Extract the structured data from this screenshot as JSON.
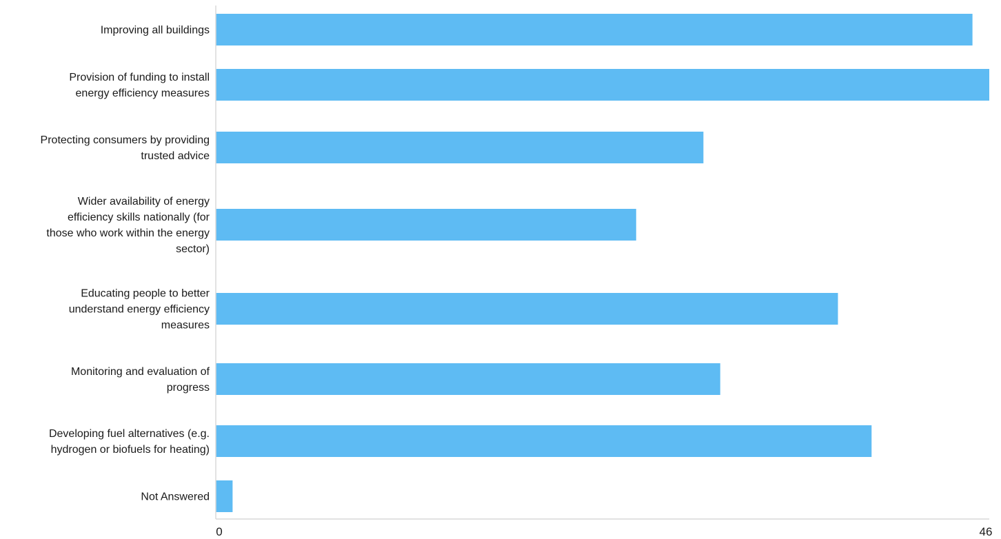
{
  "chart_data": {
    "type": "bar",
    "orientation": "horizontal",
    "title": "",
    "xlabel": "",
    "ylabel": "",
    "categories": [
      [
        "Improving all buildings"
      ],
      [
        "Provision of funding to install",
        "energy efficiency measures"
      ],
      [
        "Protecting consumers by providing",
        "trusted advice"
      ],
      [
        "Wider availability of energy",
        "efficiency skills nationally (for",
        "those who work within the energy",
        "sector)"
      ],
      [
        "Educating people to better",
        "understand energy efficiency",
        "measures"
      ],
      [
        "Monitoring and evaluation of",
        "progress"
      ],
      [
        "Developing fuel alternatives (e.g.",
        "hydrogen or biofuels for heating)"
      ],
      [
        "Not Answered"
      ]
    ],
    "values": [
      45,
      46,
      29,
      25,
      37,
      30,
      39,
      1
    ],
    "xlim": [
      0,
      46
    ],
    "x_ticks": [
      "0",
      "46"
    ],
    "bar_color": "#5ebbf3",
    "axis_color": "#d9d9d9",
    "grid": false,
    "legend": "none"
  }
}
